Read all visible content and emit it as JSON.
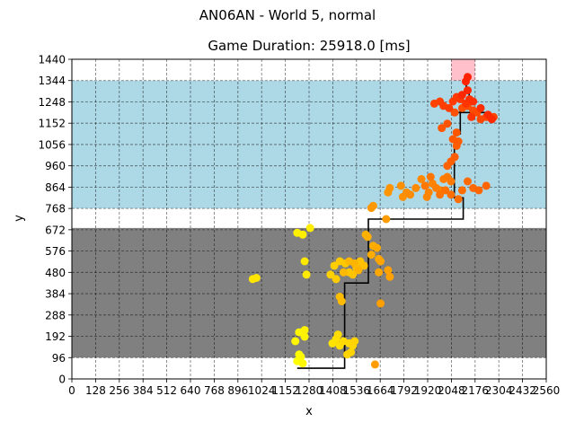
{
  "chart_data": {
    "type": "scatter",
    "suptitle": "AN06AN - World 5, normal",
    "title": "Game Duration: 25918.0 [ms]",
    "xlabel": "x",
    "ylabel": "y",
    "xlim": [
      0,
      2560
    ],
    "ylim": [
      0,
      1440
    ],
    "x_ticks": [
      0,
      128,
      256,
      384,
      512,
      640,
      768,
      896,
      1024,
      1152,
      1280,
      1408,
      1536,
      1664,
      1792,
      1920,
      2048,
      2176,
      2304,
      2432,
      2560
    ],
    "y_ticks": [
      0,
      96,
      192,
      288,
      384,
      480,
      576,
      672,
      768,
      864,
      960,
      1056,
      1152,
      1248,
      1344,
      1440
    ],
    "x_tick_labels": [
      "0",
      "128",
      "256",
      "384",
      "512",
      "640",
      "768",
      "896",
      "1024",
      "1152",
      "1280",
      "1408",
      "1536",
      "1664",
      "1792",
      "1920",
      "2048",
      "2176",
      "2304",
      "2432",
      "2560"
    ],
    "y_tick_labels": [
      "0",
      "96",
      "192",
      "288",
      "384",
      "480",
      "576",
      "672",
      "768",
      "864",
      "960",
      "1056",
      "1152",
      "1248",
      "1344",
      "1440"
    ],
    "grid": true,
    "grid_style": "dashed",
    "regions": [
      {
        "color": "#808080",
        "x": [
          0,
          2560
        ],
        "y": [
          96,
          680
        ]
      },
      {
        "color": "#add8e6",
        "x": [
          0,
          2560
        ],
        "y": [
          768,
          1344
        ]
      },
      {
        "color": "#ffc0cb",
        "x": [
          2048,
          2176
        ],
        "y": [
          1344,
          1440
        ]
      }
    ],
    "path": {
      "color": "#000000",
      "points": [
        [
          1216,
          48
        ],
        [
          1472,
          48
        ],
        [
          1472,
          432
        ],
        [
          1600,
          432
        ],
        [
          1600,
          720
        ],
        [
          2112,
          720
        ],
        [
          2112,
          816
        ],
        [
          2064,
          816
        ],
        [
          2064,
          1008
        ],
        [
          2064,
          1104
        ],
        [
          2096,
          1104
        ],
        [
          2096,
          1216
        ],
        [
          2144,
          1216
        ],
        [
          2144,
          1296
        ],
        [
          2128,
          1296
        ],
        [
          2128,
          1376
        ]
      ],
      "branch": [
        [
          2048,
          1200
        ],
        [
          2240,
          1200
        ]
      ]
    },
    "trajectory": {
      "color_start": "#ffff00",
      "color_end": "#ff2200",
      "points": [
        [
          1216,
          80
        ],
        [
          1226,
          110
        ],
        [
          1236,
          100
        ],
        [
          1246,
          70
        ],
        [
          1206,
          170
        ],
        [
          1226,
          210
        ],
        [
          1256,
          190
        ],
        [
          1256,
          220
        ],
        [
          1216,
          658
        ],
        [
          1246,
          650
        ],
        [
          1286,
          680
        ],
        [
          1266,
          470
        ],
        [
          1256,
          530
        ],
        [
          976,
          450
        ],
        [
          996,
          455
        ],
        [
          1406,
          160
        ],
        [
          1426,
          180
        ],
        [
          1446,
          150
        ],
        [
          1436,
          200
        ],
        [
          1466,
          170
        ],
        [
          1496,
          160
        ],
        [
          1516,
          150
        ],
        [
          1506,
          120
        ],
        [
          1486,
          110
        ],
        [
          1526,
          170
        ],
        [
          1396,
          470
        ],
        [
          1416,
          510
        ],
        [
          1426,
          450
        ],
        [
          1446,
          530
        ],
        [
          1476,
          520
        ],
        [
          1496,
          480
        ],
        [
          1516,
          470
        ],
        [
          1536,
          500
        ],
        [
          1556,
          530
        ],
        [
          1576,
          510
        ],
        [
          1446,
          370
        ],
        [
          1456,
          350
        ],
        [
          1466,
          480
        ],
        [
          1496,
          530
        ],
        [
          1526,
          520
        ],
        [
          1546,
          490
        ],
        [
          1586,
          650
        ],
        [
          1596,
          640
        ],
        [
          1626,
          600
        ],
        [
          1616,
          560
        ],
        [
          1646,
          590
        ],
        [
          1656,
          540
        ],
        [
          1656,
          480
        ],
        [
          1666,
          530
        ],
        [
          1706,
          490
        ],
        [
          1716,
          460
        ],
        [
          1666,
          340
        ],
        [
          1636,
          65
        ],
        [
          1696,
          720
        ],
        [
          1626,
          780
        ],
        [
          1616,
          770
        ],
        [
          1706,
          840
        ],
        [
          1716,
          860
        ],
        [
          1776,
          870
        ],
        [
          1786,
          820
        ],
        [
          1806,
          840
        ],
        [
          1826,
          830
        ],
        [
          1856,
          860
        ],
        [
          1886,
          900
        ],
        [
          1916,
          820
        ],
        [
          1926,
          840
        ],
        [
          1946,
          880
        ],
        [
          1966,
          860
        ],
        [
          1986,
          850
        ],
        [
          2006,
          900
        ],
        [
          2026,
          910
        ],
        [
          2046,
          890
        ],
        [
          1906,
          870
        ],
        [
          1936,
          910
        ],
        [
          1986,
          830
        ],
        [
          2016,
          850
        ],
        [
          2046,
          830
        ],
        [
          2086,
          810
        ],
        [
          2106,
          850
        ],
        [
          2136,
          890
        ],
        [
          2166,
          860
        ],
        [
          2196,
          850
        ],
        [
          2236,
          870
        ],
        [
          2026,
          960
        ],
        [
          2046,
          980
        ],
        [
          2066,
          1000
        ],
        [
          2076,
          1050
        ],
        [
          2086,
          1070
        ],
        [
          2056,
          1080
        ],
        [
          2076,
          1110
        ],
        [
          1996,
          1130
        ],
        [
          2026,
          1150
        ],
        [
          2066,
          1200
        ],
        [
          2106,
          1220
        ],
        [
          2136,
          1230
        ],
        [
          2166,
          1210
        ],
        [
          2186,
          1200
        ],
        [
          2206,
          1170
        ],
        [
          2236,
          1180
        ],
        [
          2276,
          1180
        ],
        [
          1956,
          1240
        ],
        [
          1986,
          1250
        ],
        [
          2006,
          1230
        ],
        [
          2036,
          1220
        ],
        [
          2056,
          1250
        ],
        [
          2076,
          1270
        ],
        [
          2096,
          1260
        ],
        [
          2126,
          1240
        ],
        [
          2156,
          1180
        ],
        [
          2146,
          1260
        ],
        [
          2166,
          1250
        ],
        [
          2206,
          1220
        ],
        [
          2246,
          1190
        ],
        [
          2266,
          1170
        ],
        [
          2106,
          1280
        ],
        [
          2136,
          1300
        ],
        [
          2126,
          1340
        ],
        [
          2136,
          1360
        ]
      ]
    }
  }
}
